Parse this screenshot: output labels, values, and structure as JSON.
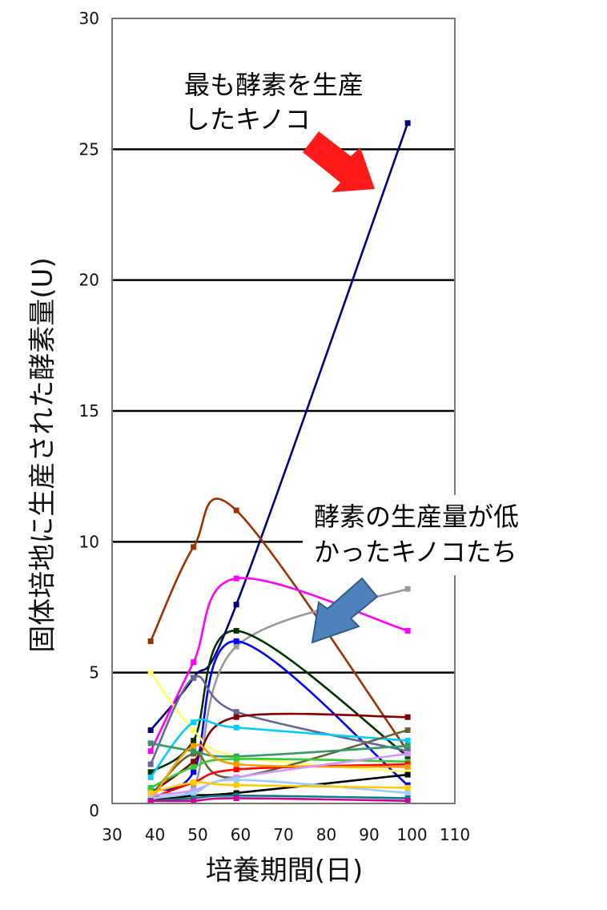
{
  "chart_data": {
    "type": "line",
    "title": "",
    "xlabel": "培養期間(日)",
    "ylabel": "固体培地に生産された酵素量(U)",
    "xlim": [
      30,
      110
    ],
    "ylim": [
      0,
      30
    ],
    "xticks": [
      "30",
      "40",
      "50",
      "60",
      "70",
      "80",
      "90",
      "100",
      "110"
    ],
    "yticks": [
      "0",
      "5",
      "10",
      "15",
      "20",
      "25",
      "30"
    ],
    "grid": "horizontal",
    "legend": "none",
    "annotations": [
      {
        "lines": [
          "最も酵素を生産",
          "したキノコ"
        ],
        "arrow_color": "#ff1a1a"
      },
      {
        "lines": [
          "酵素の生産量が低",
          "かったキノコたち"
        ],
        "arrow_color": "#4f81bd"
      }
    ],
    "x": [
      39,
      49,
      59,
      99
    ],
    "series": [
      {
        "color": "#000080",
        "values": [
          2.8,
          4.8,
          7.6,
          26.0
        ]
      },
      {
        "color": "#993300",
        "values": [
          6.2,
          9.8,
          11.2,
          2.0
        ]
      },
      {
        "color": "#ff00ff",
        "values": [
          2.0,
          5.4,
          8.6,
          6.6
        ]
      },
      {
        "color": "#999999",
        "values": [
          0.2,
          0.6,
          6.0,
          8.2
        ]
      },
      {
        "color": "#003300",
        "values": [
          1.2,
          2.4,
          6.6,
          1.8
        ]
      },
      {
        "color": "#0000ff",
        "values": [
          0.5,
          1.2,
          6.2,
          0.7
        ]
      },
      {
        "color": "#ffff66",
        "values": [
          5.0,
          2.8,
          1.8,
          1.2
        ]
      },
      {
        "color": "#666699",
        "values": [
          1.5,
          4.8,
          3.5,
          2.0
        ]
      },
      {
        "color": "#800000",
        "values": [
          0.4,
          1.6,
          3.3,
          3.3
        ]
      },
      {
        "color": "#00ccff",
        "values": [
          1.0,
          3.1,
          2.9,
          2.4
        ]
      },
      {
        "color": "#666633",
        "values": [
          0.3,
          1.9,
          1.0,
          2.8
        ]
      },
      {
        "color": "#339966",
        "values": [
          2.3,
          2.0,
          1.8,
          2.2
        ]
      },
      {
        "color": "#33cc33",
        "values": [
          0.6,
          1.4,
          1.7,
          1.6
        ]
      },
      {
        "color": "#ff0000",
        "values": [
          0.2,
          0.8,
          1.3,
          1.5
        ]
      },
      {
        "color": "#ff9900",
        "values": [
          0.1,
          2.2,
          1.5,
          1.4
        ]
      },
      {
        "color": "#cc99ff",
        "values": [
          0.3,
          0.5,
          1.0,
          1.9
        ]
      },
      {
        "color": "#000000",
        "values": [
          0.1,
          0.3,
          0.4,
          1.1
        ]
      },
      {
        "color": "#99ccff",
        "values": [
          0.2,
          0.4,
          0.9,
          0.4
        ]
      },
      {
        "color": "#ffcc00",
        "values": [
          0.4,
          0.8,
          0.7,
          0.6
        ]
      },
      {
        "color": "#008080",
        "values": [
          0.1,
          0.2,
          0.3,
          0.2
        ]
      },
      {
        "color": "#cc0099",
        "values": [
          0.1,
          0.1,
          0.2,
          0.1
        ]
      }
    ]
  }
}
